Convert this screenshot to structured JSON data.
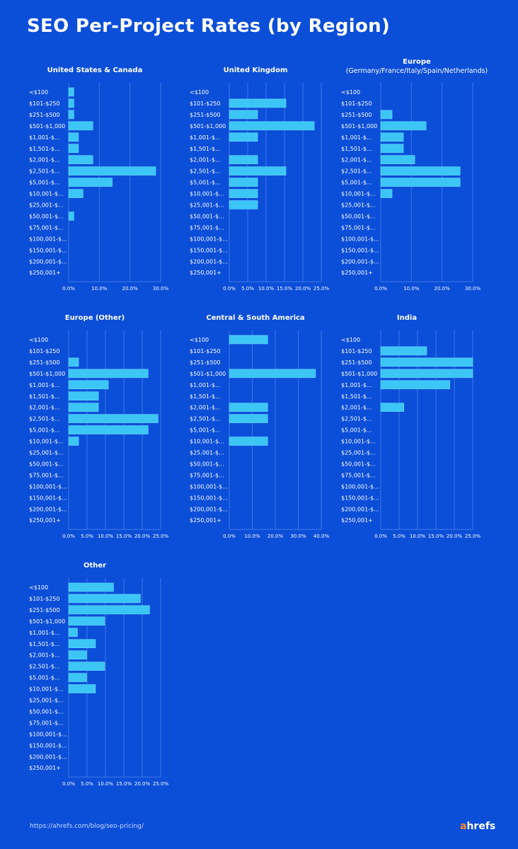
{
  "title": "SEO Per-Project Rates (by Region)",
  "footer": {
    "url": "https://ahrefs.com/blog/seo-pricing/",
    "brand_a": "a",
    "brand_rest": "hrefs"
  },
  "colors": {
    "background": "#0b4ed8",
    "bar": "#3cc6f5",
    "bar_border": "#6ad8ff",
    "grid": "#3f78e6",
    "text": "#ffffff",
    "brand_accent": "#ff8a2a"
  },
  "chart_data": [
    {
      "type": "bar",
      "orientation": "horizontal",
      "title": "United States & Canada",
      "subtitle": "",
      "categories": [
        "<$100",
        "$101-$250",
        "$251-$500",
        "$501-$1,000",
        "$1,001-$...",
        "$1,501-$...",
        "$2,001-$...",
        "$2,501-$...",
        "$5,001-$...",
        "$10,001-$...",
        "$25,001-$...",
        "$50,001-$...",
        "$75,001-$...",
        "$100,001-$...",
        "$150,001-$...",
        "$200,001-$...",
        "$250,001+"
      ],
      "values": [
        1.7,
        1.7,
        1.7,
        7.9,
        3.2,
        3.2,
        7.9,
        28.4,
        14.2,
        4.7,
        0,
        1.7,
        0,
        0,
        0,
        0,
        0
      ],
      "xlim": [
        0,
        30
      ],
      "ticks": [
        0,
        10,
        20,
        30
      ],
      "tick_labels": [
        "0.0%",
        "10.0%",
        "20.0%",
        "30.0%"
      ]
    },
    {
      "type": "bar",
      "orientation": "horizontal",
      "title": "United Kingdom",
      "subtitle": "",
      "categories": [
        "<$100",
        "$101-$250",
        "$251-$500",
        "$501-$1,000",
        "$1,001-$...",
        "$1,501-$...",
        "$2,001-$...",
        "$2,501-$...",
        "$5,001-$...",
        "$10,001-$...",
        "$25,001-$...",
        "$50,001-$...",
        "$75,001-$...",
        "$100,001-$...",
        "$150,001-$...",
        "$200,001-$...",
        "$250,001+"
      ],
      "values": [
        0,
        15.4,
        7.7,
        23.1,
        7.7,
        0,
        7.7,
        15.4,
        7.7,
        7.7,
        7.7,
        0,
        0,
        0,
        0,
        0,
        0
      ],
      "xlim": [
        0,
        25
      ],
      "ticks": [
        0,
        5,
        10,
        15,
        20,
        25
      ],
      "tick_labels": [
        "0.0%",
        "5.0%",
        "10.0%",
        "15.0%",
        "20.0%",
        "25.0%"
      ]
    },
    {
      "type": "bar",
      "orientation": "horizontal",
      "title": "Europe",
      "subtitle": "(Germany/France/Italy/Spain/Netherlands)",
      "categories": [
        "<$100",
        "$101-$250",
        "$251-$500",
        "$501-$1,000",
        "$1,001-$...",
        "$1,501-$...",
        "$2,001-$...",
        "$2,501-$...",
        "$5,001-$...",
        "$10,001-$...",
        "$25,001-$...",
        "$50,001-$...",
        "$75,001-$...",
        "$100,001-$...",
        "$150,001-$...",
        "$200,001-$...",
        "$250,001+"
      ],
      "values": [
        0,
        0,
        3.7,
        14.8,
        7.4,
        7.4,
        11.1,
        25.9,
        25.9,
        3.7,
        0,
        0,
        0,
        0,
        0,
        0,
        0
      ],
      "xlim": [
        0,
        30
      ],
      "ticks": [
        0,
        10,
        20,
        30
      ],
      "tick_labels": [
        "0.0%",
        "10.0%",
        "20.0%",
        "30.0%"
      ]
    },
    {
      "type": "bar",
      "orientation": "horizontal",
      "title": "Europe (Other)",
      "subtitle": "",
      "categories": [
        "<$100",
        "$101-$250",
        "$251-$500",
        "$501-$1,000",
        "$1,001-$...",
        "$1,501-$...",
        "$2,001-$...",
        "$2,501-$...",
        "$5,001-$...",
        "$10,001-$...",
        "$25,001-$...",
        "$50,001-$...",
        "$75,001-$...",
        "$100,001-$...",
        "$150,001-$...",
        "$200,001-$...",
        "$250,001+"
      ],
      "values": [
        0,
        0,
        2.7,
        21.6,
        10.8,
        8.1,
        8.1,
        24.3,
        21.6,
        2.7,
        0,
        0,
        0,
        0,
        0,
        0,
        0
      ],
      "xlim": [
        0,
        25
      ],
      "ticks": [
        0,
        5,
        10,
        15,
        20,
        25
      ],
      "tick_labels": [
        "0.0%",
        "5.0%",
        "10.0%",
        "15.0%",
        "20.0%",
        "25.0%"
      ]
    },
    {
      "type": "bar",
      "orientation": "horizontal",
      "title": "Central & South America",
      "subtitle": "",
      "categories": [
        "<$100",
        "$101-$250",
        "$251-$500",
        "$501-$1,000",
        "$1,001-$...",
        "$1,501-$...",
        "$2,001-$...",
        "$2,501-$...",
        "$5,001-$...",
        "$10,001-$...",
        "$25,001-$...",
        "$50,001-$...",
        "$75,001-$...",
        "$100,001-$...",
        "$150,001-$...",
        "$200,001-$...",
        "$250,001+"
      ],
      "values": [
        16.7,
        0,
        0,
        37.5,
        0,
        0,
        16.7,
        16.7,
        0,
        16.7,
        0,
        0,
        0,
        0,
        0,
        0,
        0
      ],
      "xlim": [
        0,
        40
      ],
      "ticks": [
        0,
        10,
        20,
        30,
        40
      ],
      "tick_labels": [
        "0.0%",
        "10.0%",
        "20.0%",
        "30.0%",
        "40.0%"
      ]
    },
    {
      "type": "bar",
      "orientation": "horizontal",
      "title": "India",
      "subtitle": "",
      "categories": [
        "<$100",
        "$101-$250",
        "$251-$500",
        "$501-$1,000",
        "$1,001-$...",
        "$1,501-$...",
        "$2,001-$...",
        "$2,501-$...",
        "$5,001-$...",
        "$10,001-$...",
        "$25,001-$...",
        "$50,001-$...",
        "$75,001-$...",
        "$100,001-$...",
        "$150,001-$...",
        "$200,001-$...",
        "$250,001+"
      ],
      "values": [
        0,
        12.5,
        25,
        25,
        18.8,
        0,
        6.3,
        0,
        0,
        0,
        0,
        0,
        0,
        0,
        0,
        0,
        0
      ],
      "xlim": [
        0,
        25
      ],
      "ticks": [
        0,
        5,
        10,
        15,
        20,
        25
      ],
      "tick_labels": [
        "0.0%",
        "5.0%",
        "10.0%",
        "15.0%",
        "20.0%",
        "25.0%"
      ]
    },
    {
      "type": "bar",
      "orientation": "horizontal",
      "title": "Other",
      "subtitle": "",
      "categories": [
        "<$100",
        "$101-$250",
        "$251-$500",
        "$501-$1,000",
        "$1,001-$...",
        "$1,501-$...",
        "$2,001-$...",
        "$2,501-$...",
        "$5,001-$...",
        "$10,001-$...",
        "$25,001-$...",
        "$50,001-$...",
        "$75,001-$...",
        "$100,001-$...",
        "$150,001-$...",
        "$200,001-$...",
        "$250,001+"
      ],
      "values": [
        12.2,
        19.5,
        22,
        9.8,
        2.4,
        7.3,
        4.9,
        9.8,
        4.9,
        7.3,
        0,
        0,
        0,
        0,
        0,
        0,
        0
      ],
      "xlim": [
        0,
        25
      ],
      "ticks": [
        0,
        5,
        10,
        15,
        20,
        25
      ],
      "tick_labels": [
        "0.0%",
        "5.0%",
        "10.0%",
        "15.0%",
        "20.0%",
        "25.0%"
      ]
    }
  ]
}
